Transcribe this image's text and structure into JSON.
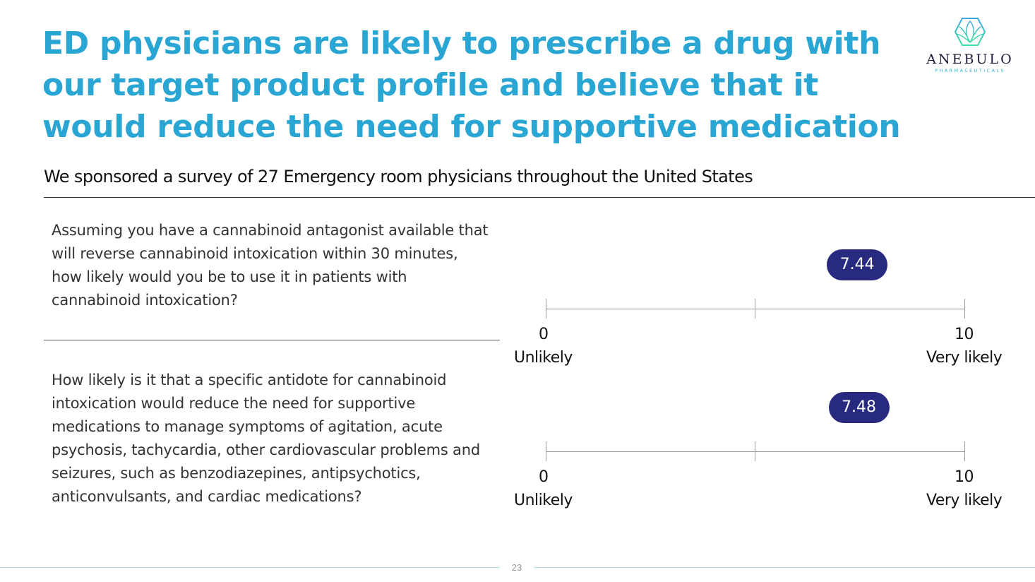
{
  "title": "ED physicians are likely to prescribe a drug with our target product profile and believe that it would reduce the need for supportive medication",
  "logo": {
    "name": "ANEBULO",
    "sub": "PHARMACEUTICALS"
  },
  "subtitle": "We sponsored a survey of 27 Emergency room physicians throughout the United States",
  "questions": [
    {
      "text": "Assuming you have a cannabinoid antagonist available that will reverse cannabinoid intoxication within 30 minutes, how likely would you be to use it in patients with cannabinoid intoxication?",
      "score": 7.44,
      "score_label": "7.44",
      "min": "0",
      "max": "10",
      "min_label": "Unlikely",
      "max_label": "Very likely"
    },
    {
      "text": "How likely is it that a specific antidote for cannabinoid intoxication would reduce the need for supportive medications to manage symptoms of agitation, acute psychosis, tachycardia, other cardiovascular problems and seizures, such as benzodiazepines, antipsychotics, anticonvulsants, and cardiac medications?",
      "score": 7.48,
      "score_label": "7.48",
      "min": "0",
      "max": "10",
      "min_label": "Unlikely",
      "max_label": "Very likely"
    }
  ],
  "scale_range": [
    0,
    10
  ],
  "page_number": "23",
  "colors": {
    "title": "#29a6d3",
    "badge": "#272a7e"
  }
}
